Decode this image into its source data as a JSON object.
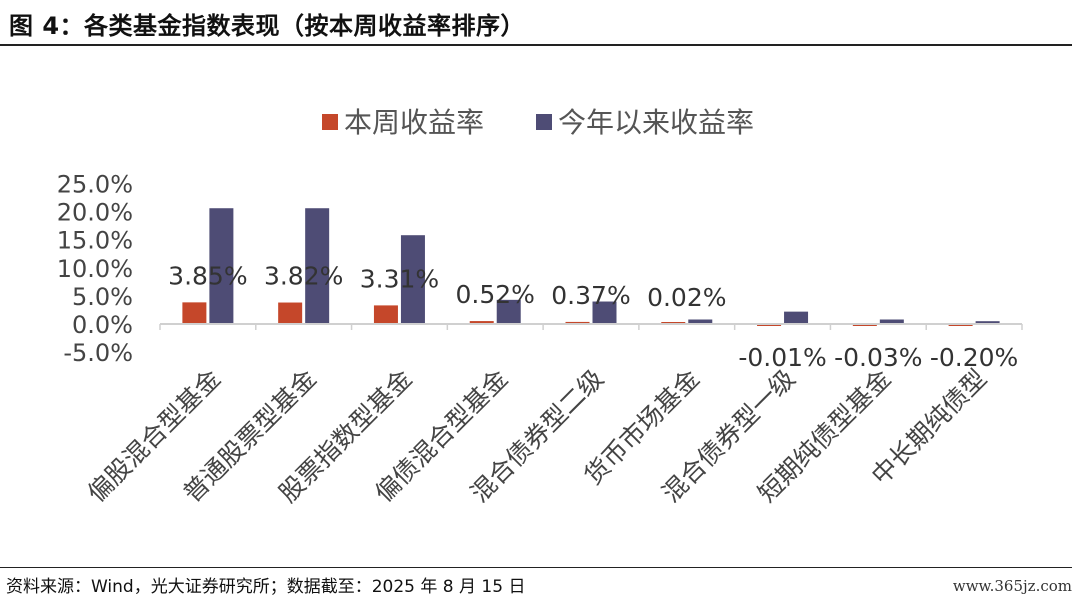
{
  "figure": {
    "title": "图 4：各类基金指数表现（按本周收益率排序）",
    "source": "资料来源：Wind，光大证券研究所；数据截至：2025 年 8 月 15 日",
    "watermark": "www.365jz.com"
  },
  "chart_data": {
    "type": "bar",
    "title": "",
    "xlabel": "",
    "ylabel": "",
    "categories": [
      "偏股混合型基金",
      "普通股票型基金",
      "股票指数型基金",
      "偏债混合型基金",
      "混合债券型二级",
      "货币市场基金",
      "混合债券型一级",
      "短期纯债型基金",
      "中长期纯债型"
    ],
    "series": [
      {
        "name": "本周收益率",
        "color": "#C5472A",
        "values": [
          3.85,
          3.82,
          3.31,
          0.52,
          0.37,
          0.02,
          -0.01,
          -0.03,
          -0.2
        ]
      },
      {
        "name": "今年以来收益率",
        "color": "#4E4C75",
        "values": [
          20.6,
          20.6,
          15.8,
          4.3,
          4.0,
          0.8,
          2.2,
          0.8,
          0.5
        ]
      }
    ],
    "data_labels": [
      "3.85%",
      "3.82%",
      "3.31%",
      "0.52%",
      "0.37%",
      "0.02%",
      "-0.01%",
      "-0.03%",
      "-0.20%"
    ],
    "ylim": [
      -5,
      25
    ],
    "yticks": [
      -5,
      0,
      5,
      10,
      15,
      20,
      25
    ],
    "ytick_labels": [
      "-5.0%",
      "0.0%",
      "5.0%",
      "10.0%",
      "15.0%",
      "20.0%",
      "25.0%"
    ],
    "grid": false,
    "legend_position": "top"
  }
}
